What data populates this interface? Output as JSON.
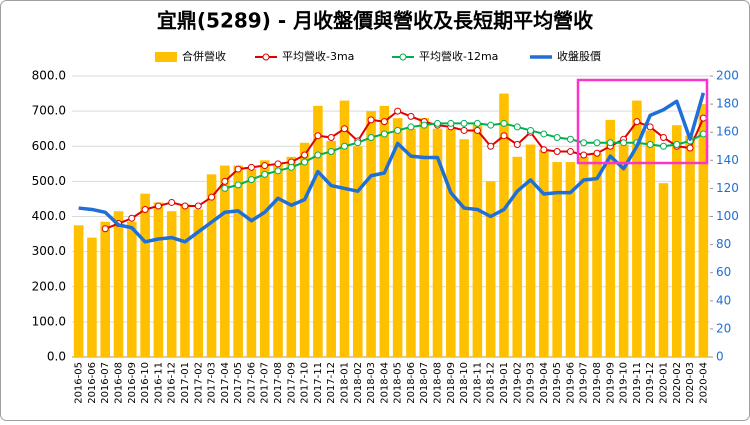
{
  "chart_data": {
    "type": "bar",
    "title": "宜鼎(5289)  - 月收盤價與營收及長短期平均營收",
    "categories": [
      "2016-05",
      "2016-06",
      "2016-07",
      "2016-08",
      "2016-09",
      "2016-10",
      "2016-11",
      "2016-12",
      "2017-01",
      "2017-02",
      "2017-03",
      "2017-04",
      "2017-05",
      "2017-06",
      "2017-07",
      "2017-08",
      "2017-09",
      "2017-10",
      "2017-11",
      "2017-12",
      "2018-01",
      "2018-02",
      "2018-03",
      "2018-04",
      "2018-05",
      "2018-06",
      "2018-07",
      "2018-08",
      "2018-09",
      "2018-10",
      "2018-11",
      "2018-12",
      "2019-01",
      "2019-02",
      "2019-03",
      "2019-04",
      "2019-05",
      "2019-06",
      "2019-07",
      "2019-08",
      "2019-09",
      "2019-10",
      "2019-11",
      "2019-12",
      "2020-01",
      "2020-02",
      "2020-03",
      "2020-04"
    ],
    "series": [
      {
        "name": "合併營收",
        "type": "bar",
        "color": "#ffc000",
        "values": [
          375,
          340,
          385,
          415,
          385,
          465,
          440,
          415,
          435,
          420,
          520,
          545,
          545,
          535,
          560,
          550,
          570,
          610,
          715,
          615,
          730,
          600,
          700,
          715,
          680,
          650,
          680,
          650,
          650,
          620,
          665,
          500,
          750,
          570,
          605,
          590,
          555,
          555,
          570,
          580,
          675,
          605,
          730,
          645,
          495,
          660,
          630,
          720
        ]
      },
      {
        "name": "平均營收-3ma",
        "type": "line",
        "color": "#e00000",
        "marker": true,
        "values": [
          null,
          null,
          365,
          380,
          395,
          420,
          430,
          440,
          430,
          430,
          455,
          500,
          535,
          540,
          545,
          550,
          555,
          575,
          630,
          625,
          650,
          615,
          675,
          670,
          700,
          685,
          670,
          660,
          655,
          645,
          645,
          600,
          630,
          605,
          640,
          590,
          585,
          585,
          575,
          580,
          600,
          620,
          670,
          655,
          625,
          600,
          595,
          680
        ]
      },
      {
        "name": "平均營收-12ma",
        "type": "line",
        "color": "#00b050",
        "marker": true,
        "values": [
          null,
          null,
          null,
          null,
          null,
          null,
          null,
          null,
          null,
          null,
          null,
          480,
          490,
          505,
          520,
          530,
          540,
          555,
          575,
          585,
          600,
          610,
          625,
          635,
          645,
          655,
          660,
          665,
          665,
          665,
          665,
          660,
          665,
          655,
          645,
          635,
          625,
          620,
          610,
          610,
          610,
          610,
          610,
          605,
          600,
          605,
          615,
          635
        ]
      },
      {
        "name": "收盤股價",
        "type": "line",
        "axis": "y2",
        "color": "#1f6fd6",
        "marker": false,
        "values": [
          106,
          105,
          103,
          94,
          92,
          82,
          84,
          85,
          82,
          89,
          96,
          103,
          104,
          97,
          103,
          113,
          108,
          112,
          132,
          122,
          120,
          118,
          129,
          131,
          152,
          143,
          142,
          142,
          117,
          106,
          105,
          100,
          105,
          118,
          126,
          116,
          117,
          117,
          126,
          127,
          143,
          134,
          150,
          172,
          176,
          182,
          155,
          188
        ]
      }
    ],
    "ylim": [
      0,
      800
    ],
    "yticks": [
      {
        "value": 0,
        "label": "0.0"
      },
      {
        "value": 100,
        "label": "100.0"
      },
      {
        "value": 200,
        "label": "200.0"
      },
      {
        "value": 300,
        "label": "300.0"
      },
      {
        "value": 400,
        "label": "400.0"
      },
      {
        "value": 500,
        "label": "500.0"
      },
      {
        "value": 600,
        "label": "600.0"
      },
      {
        "value": 700,
        "label": "700.0"
      },
      {
        "value": 800,
        "label": "800.0"
      }
    ],
    "y2lim": [
      0,
      200
    ],
    "y2ticks": [
      0,
      20,
      40,
      60,
      80,
      100,
      120,
      140,
      160,
      180,
      200
    ],
    "grid": true,
    "legend": "top"
  }
}
